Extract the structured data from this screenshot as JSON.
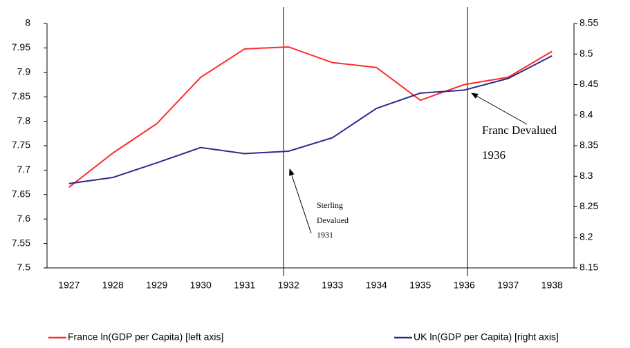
{
  "chart_data": {
    "type": "line",
    "categories": [
      "1927",
      "1928",
      "1929",
      "1930",
      "1931",
      "1932",
      "1933",
      "1934",
      "1935",
      "1936",
      "1937",
      "1938"
    ],
    "series": [
      {
        "name": "France ln(GDP per Capita) [left axis]",
        "color": "#ff2a2a",
        "axis": "y",
        "values": [
          7.665,
          7.735,
          7.795,
          7.89,
          7.948,
          7.952,
          7.92,
          7.91,
          7.843,
          7.875,
          7.89,
          7.943
        ]
      },
      {
        "name": "UK ln(GDP per Capita) [right axis]",
        "color": "#2b2b8c",
        "axis": "y2",
        "values": [
          8.288,
          8.298,
          8.322,
          8.347,
          8.337,
          8.341,
          8.363,
          8.411,
          8.436,
          8.441,
          8.46,
          8.497
        ]
      }
    ],
    "ylim": [
      7.5,
      8
    ],
    "yticks": [
      7.5,
      7.55,
      7.6,
      7.65,
      7.7,
      7.75,
      7.8,
      7.85,
      7.9,
      7.95,
      8
    ],
    "y2lim": [
      8.15,
      8.55
    ],
    "y2ticks": [
      8.15,
      8.2,
      8.25,
      8.3,
      8.35,
      8.4,
      8.45,
      8.5,
      8.55
    ],
    "grid": false,
    "legend": "bottom",
    "annotations": [
      {
        "lines": [
          "Sterling",
          "Devalued",
          "1931"
        ]
      },
      {
        "lines": [
          "Franc Devalued",
          "1936"
        ]
      }
    ]
  }
}
